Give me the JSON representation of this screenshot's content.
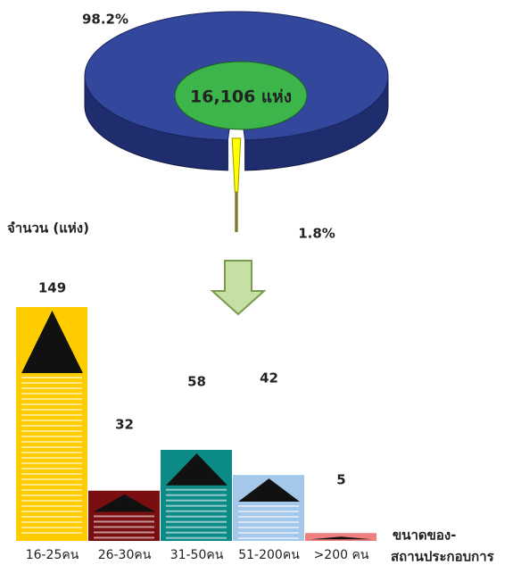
{
  "chart_data": [
    {
      "type": "pie",
      "values": [
        98.2,
        1.8
      ],
      "value_labels": [
        "98.2%",
        "1.8%"
      ],
      "colors": [
        "#33479c",
        "#ffff00"
      ],
      "center_label": "16,106 แห่ง"
    },
    {
      "type": "bar",
      "y_label": "จำนวน (แห่ง)",
      "x_label": [
        "ขนาดของ-",
        "สถานประกอบการ"
      ],
      "categories": [
        "16-25คน",
        "26-30คน",
        "31-50คน",
        "51-200คน",
        ">200 คน"
      ],
      "values": [
        149,
        32,
        58,
        42,
        5
      ],
      "colors": [
        "#ffcc00",
        "#7a0f12",
        "#0b8a86",
        "#a4c8ea",
        "#f07f80"
      ]
    }
  ]
}
